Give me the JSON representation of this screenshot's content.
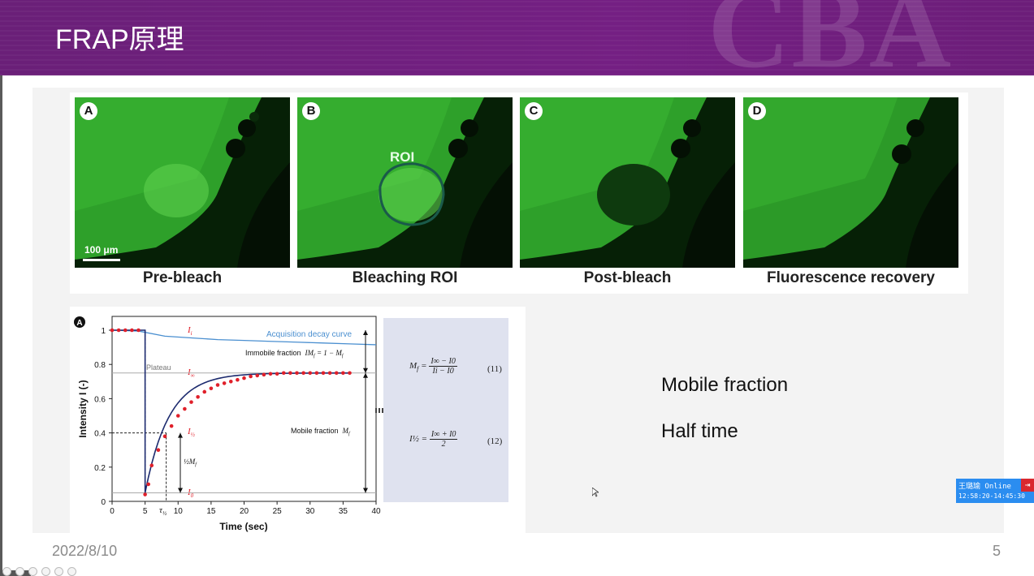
{
  "slide": {
    "title": "FRAP原理",
    "date": "2022/8/10",
    "page_number": "5"
  },
  "figure_top": {
    "panels": [
      {
        "letter": "A",
        "caption": "Pre-bleach"
      },
      {
        "letter": "B",
        "caption": "Bleaching ROI"
      },
      {
        "letter": "C",
        "caption": "Post-bleach"
      },
      {
        "letter": "D",
        "caption": "Fluorescence recovery"
      }
    ],
    "scale_bar": "100 μm",
    "roi_label": "ROI"
  },
  "chart_data": {
    "type": "line",
    "panel_letter": "A",
    "xlabel": "Time (sec)",
    "ylabel": "Intensity I (-)",
    "xlim": [
      0,
      40
    ],
    "ylim": [
      0,
      1
    ],
    "xticks": [
      "0",
      "5",
      "10",
      "15",
      "20",
      "25",
      "30",
      "35",
      "40"
    ],
    "yticks": [
      "0",
      "0.2",
      "0.4",
      "0.6",
      "0.8",
      "1"
    ],
    "series": [
      {
        "name": "Acquisition decay curve",
        "x": [
          0,
          4,
          8,
          12,
          16,
          20,
          24,
          28,
          32,
          36,
          40
        ],
        "y": [
          1.0,
          0.995,
          0.965,
          0.955,
          0.945,
          0.94,
          0.935,
          0.93,
          0.925,
          0.92,
          0.915
        ]
      },
      {
        "x": [
          0,
          1,
          2,
          3,
          4,
          5,
          5.5,
          6,
          7,
          8,
          9,
          10,
          11,
          12,
          13,
          14,
          15,
          16,
          17,
          18,
          19,
          20,
          21,
          22,
          23,
          24,
          25,
          26,
          27,
          28,
          29,
          30,
          31,
          32,
          33,
          34,
          35,
          36
        ],
        "y": [
          1.0,
          1.0,
          1.0,
          1.0,
          1.0,
          0.04,
          0.1,
          0.21,
          0.3,
          0.38,
          0.44,
          0.5,
          0.54,
          0.58,
          0.61,
          0.64,
          0.66,
          0.68,
          0.69,
          0.7,
          0.71,
          0.72,
          0.73,
          0.735,
          0.74,
          0.745,
          0.745,
          0.75,
          0.75,
          0.75,
          0.75,
          0.75,
          0.75,
          0.75,
          0.75,
          0.75,
          0.75,
          0.75
        ]
      }
    ],
    "annotations": {
      "Ii": "I",
      "Ii_sub": "i",
      "Iinf": "I",
      "Iinf_sub": "∞",
      "Ihalf": "I",
      "Ihalf_sub": "½",
      "I0": "I",
      "I0_sub": "0",
      "plateau": "Plateau",
      "immobile": "Immobile fraction",
      "immobile_eq": "IM",
      "immobile_eq_rest": " = 1 − M",
      "mobile": "Mobile fraction",
      "mobile_sym": "M",
      "half_mf": "½M",
      "tau": "τ",
      "tau_sub": "½"
    },
    "colors": {
      "data_points": "#e0202a",
      "fit_curve": "#1c2a6e",
      "decay_curve": "#4a8fd0",
      "guides": "#1c2a6e"
    }
  },
  "formulas": {
    "eq11": {
      "lhs": "M",
      "lhs_sub": "f",
      "num": "I∞ − I0",
      "den": "Ii − I0",
      "number": "(11)"
    },
    "eq12": {
      "lhs": "I½",
      "num": "I∞ + I0",
      "den": "2",
      "number": "(12)"
    }
  },
  "side_notes": {
    "mobile_fraction": "Mobile fraction",
    "half_time": "Half time"
  },
  "user_widget": {
    "name": "王璐瑜 Online",
    "time": "12:58:20-14:45:30"
  }
}
